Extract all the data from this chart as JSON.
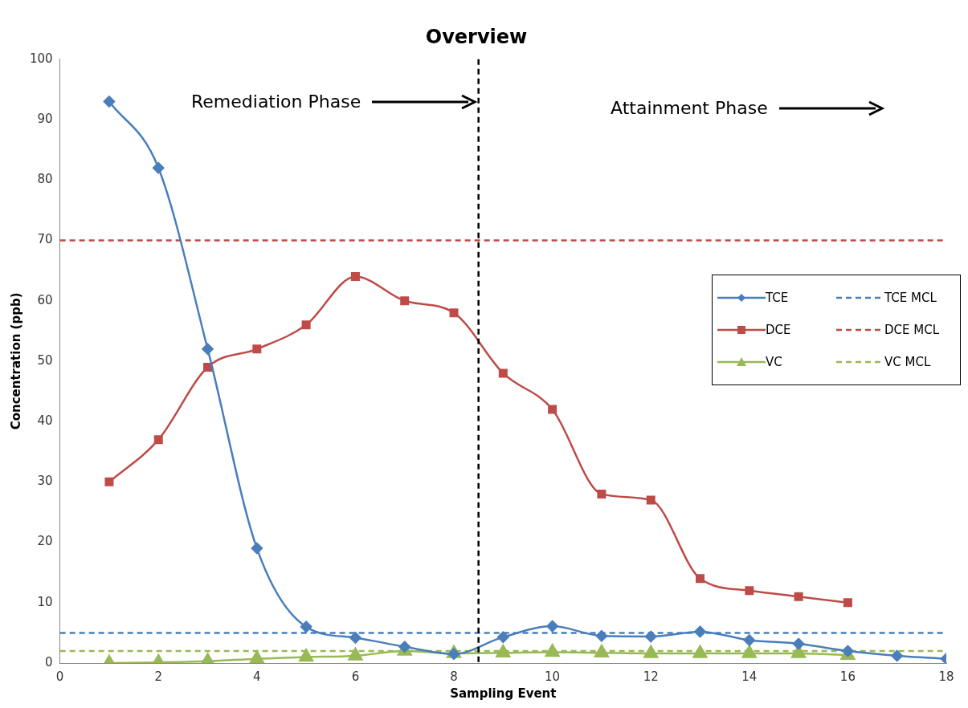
{
  "chart_data": {
    "type": "line",
    "title": "Overview",
    "xlabel": "Sampling Event",
    "ylabel": "Concentration (ppb)",
    "xlim": [
      0,
      18
    ],
    "xticks": [
      0,
      2,
      4,
      6,
      8,
      10,
      12,
      14,
      16,
      18
    ],
    "ylim": [
      0,
      100
    ],
    "yticks": [
      0,
      10,
      20,
      30,
      40,
      50,
      60,
      70,
      80,
      90,
      100
    ],
    "grid": false,
    "legend": "right",
    "series": [
      {
        "name": "TCE",
        "color": "#4a7ebb",
        "marker": "diamond",
        "line_style": "solid",
        "x": [
          1,
          2,
          3,
          4,
          5,
          6,
          7,
          8,
          9,
          10,
          11,
          12,
          13,
          14,
          15,
          16,
          17,
          18
        ],
        "values": [
          93,
          82,
          52,
          19,
          6,
          4.2,
          2.7,
          1.5,
          4.3,
          6.1,
          4.5,
          4.4,
          5.2,
          3.8,
          3.2,
          2,
          1.2,
          0.7
        ]
      },
      {
        "name": "TCE MCL",
        "color": "#4a7ebb",
        "marker": "none",
        "line_style": "dashed",
        "x": [
          0,
          18
        ],
        "values": [
          5,
          5
        ]
      },
      {
        "name": "DCE",
        "color": "#be4b48",
        "marker": "square",
        "line_style": "solid",
        "x": [
          1,
          2,
          3,
          4,
          5,
          6,
          7,
          8,
          9,
          10,
          11,
          12,
          13,
          14,
          15,
          16
        ],
        "values": [
          30,
          37,
          49,
          52,
          56,
          64,
          60,
          58,
          48,
          42,
          28,
          27,
          14,
          12,
          11,
          10
        ]
      },
      {
        "name": "DCE MCL",
        "color": "#be4b48",
        "marker": "none",
        "line_style": "dashed",
        "x": [
          0,
          18
        ],
        "values": [
          70,
          70
        ]
      },
      {
        "name": "VC",
        "color": "#98b954",
        "marker": "triangle",
        "line_style": "solid",
        "x": [
          1,
          2,
          3,
          4,
          5,
          6,
          7,
          8,
          9,
          10,
          11,
          12,
          13,
          14,
          15,
          16
        ],
        "values": [
          0,
          0.1,
          0.3,
          0.7,
          1,
          1.2,
          2,
          1.6,
          1.7,
          1.8,
          1.7,
          1.6,
          1.6,
          1.6,
          1.6,
          1.3
        ]
      },
      {
        "name": "VC MCL",
        "color": "#98b954",
        "marker": "none",
        "line_style": "dashed",
        "x": [
          0,
          18
        ],
        "values": [
          2,
          2
        ]
      }
    ],
    "ref_lines": [
      {
        "axis": "x",
        "value": 8.5,
        "color": "#000000",
        "line_style": "dashed"
      }
    ],
    "annotations": [
      "Remediation Phase",
      "Attainment Phase"
    ]
  }
}
